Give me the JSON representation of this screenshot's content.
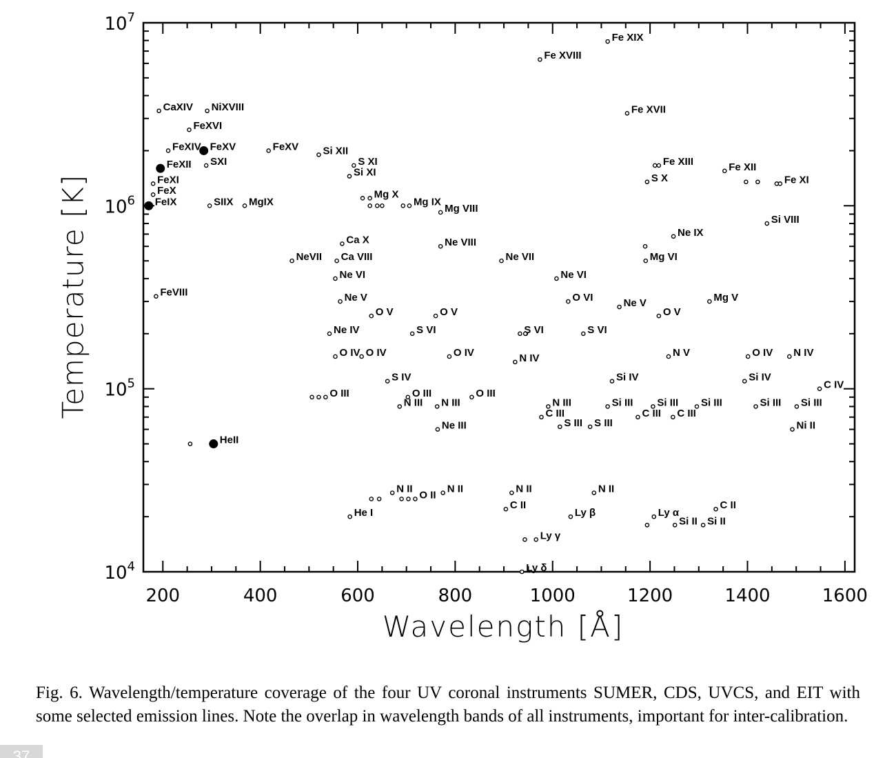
{
  "chart_data": {
    "type": "scatter",
    "xlabel": "Wavelength [Å]",
    "ylabel": "Temperature [K]",
    "xlim": [
      160,
      1620
    ],
    "ylim": [
      10000,
      10000000
    ],
    "yscale": "log",
    "x_ticks": [
      200,
      400,
      600,
      800,
      1000,
      1200,
      1400,
      1600
    ],
    "y_ticks": [
      {
        "value": 10000,
        "base": "10",
        "exp": "4"
      },
      {
        "value": 100000,
        "base": "10",
        "exp": "5"
      },
      {
        "value": 1000000,
        "base": "10",
        "exp": "6"
      },
      {
        "value": 10000000,
        "base": "10",
        "exp": "7"
      }
    ],
    "grid": false,
    "marker_colors": {
      "open": "#000000",
      "filled": "#000000"
    },
    "points": [
      {
        "x": 1113,
        "y": 7900000,
        "label": "Fe XIX"
      },
      {
        "x": 974,
        "y": 6300000,
        "label": "Fe XVIII"
      },
      {
        "x": 1153,
        "y": 3200000,
        "label": "Fe XVII"
      },
      {
        "x": 192,
        "y": 3300000,
        "label": "CaXIV"
      },
      {
        "x": 291,
        "y": 3300000,
        "label": "NiXVIII"
      },
      {
        "x": 254,
        "y": 2600000,
        "label": "FeXVI"
      },
      {
        "x": 211,
        "y": 2000000,
        "label": "FeXIV"
      },
      {
        "x": 284,
        "y": 2000000,
        "label": "FeXV",
        "filled": true
      },
      {
        "x": 417,
        "y": 2000000,
        "label": "FeXV"
      },
      {
        "x": 520,
        "y": 1900000,
        "label": "Si XII"
      },
      {
        "x": 195,
        "y": 1600000,
        "label": "FeXII",
        "filled": true
      },
      {
        "x": 289,
        "y": 1660000,
        "label": "SXI"
      },
      {
        "x": 592,
        "y": 1660000,
        "label": "S XI"
      },
      {
        "x": 583,
        "y": 1450000,
        "label": "Si XI"
      },
      {
        "x": 1210,
        "y": 1660000,
        "label": ""
      },
      {
        "x": 1218,
        "y": 1660000,
        "label": "Fe XIII"
      },
      {
        "x": 1353,
        "y": 1550000,
        "label": "Fe XII"
      },
      {
        "x": 180,
        "y": 1320000,
        "label": "FeXI"
      },
      {
        "x": 1194,
        "y": 1350000,
        "label": "S X"
      },
      {
        "x": 1397,
        "y": 1350000,
        "label": ""
      },
      {
        "x": 1421,
        "y": 1350000,
        "label": ""
      },
      {
        "x": 1460,
        "y": 1320000,
        "label": ""
      },
      {
        "x": 1467,
        "y": 1320000,
        "label": "Fe XI"
      },
      {
        "x": 180,
        "y": 1150000,
        "label": "FeX"
      },
      {
        "x": 171,
        "y": 1000000,
        "label": "FeIX",
        "filled": true
      },
      {
        "x": 296,
        "y": 1000000,
        "label": "SIIX"
      },
      {
        "x": 368,
        "y": 1000000,
        "label": "MgIX"
      },
      {
        "x": 610,
        "y": 1100000,
        "label": ""
      },
      {
        "x": 625,
        "y": 1100000,
        "label": "Mg X"
      },
      {
        "x": 625,
        "y": 1000000,
        "label": ""
      },
      {
        "x": 640,
        "y": 1000000,
        "label": ""
      },
      {
        "x": 650,
        "y": 1000000,
        "label": ""
      },
      {
        "x": 693,
        "y": 1000000,
        "label": ""
      },
      {
        "x": 706,
        "y": 1000000,
        "label": "Mg IX"
      },
      {
        "x": 770,
        "y": 920000,
        "label": "Mg VIII"
      },
      {
        "x": 1440,
        "y": 800000,
        "label": "Si VIII"
      },
      {
        "x": 1248,
        "y": 680000,
        "label": "Ne IX"
      },
      {
        "x": 568,
        "y": 620000,
        "label": "Ca X"
      },
      {
        "x": 770,
        "y": 600000,
        "label": "Ne VIII"
      },
      {
        "x": 1190,
        "y": 600000,
        "label": ""
      },
      {
        "x": 465,
        "y": 500000,
        "label": "NeVII"
      },
      {
        "x": 557,
        "y": 500000,
        "label": "Ca VIII"
      },
      {
        "x": 895,
        "y": 500000,
        "label": "Ne VII"
      },
      {
        "x": 1191,
        "y": 500000,
        "label": "Mg VI"
      },
      {
        "x": 554,
        "y": 400000,
        "label": "Ne VI"
      },
      {
        "x": 1008,
        "y": 400000,
        "label": "Ne VI"
      },
      {
        "x": 186,
        "y": 320000,
        "label": "FeVIII"
      },
      {
        "x": 564,
        "y": 300000,
        "label": "Ne V"
      },
      {
        "x": 1032,
        "y": 300000,
        "label": "O VI"
      },
      {
        "x": 1137,
        "y": 280000,
        "label": "Ne V"
      },
      {
        "x": 1322,
        "y": 300000,
        "label": "Mg V"
      },
      {
        "x": 628,
        "y": 250000,
        "label": "O V"
      },
      {
        "x": 760,
        "y": 250000,
        "label": "O V"
      },
      {
        "x": 1218,
        "y": 250000,
        "label": "O V"
      },
      {
        "x": 542,
        "y": 200000,
        "label": "Ne IV"
      },
      {
        "x": 712,
        "y": 200000,
        "label": "S VI"
      },
      {
        "x": 933,
        "y": 200000,
        "label": "S VI"
      },
      {
        "x": 945,
        "y": 200000,
        "label": ""
      },
      {
        "x": 944,
        "y": 200000,
        "label": ""
      },
      {
        "x": 1063,
        "y": 200000,
        "label": "S VI"
      },
      {
        "x": 554,
        "y": 150000,
        "label": "O IV"
      },
      {
        "x": 608,
        "y": 150000,
        "label": "O IV"
      },
      {
        "x": 788,
        "y": 150000,
        "label": "O IV"
      },
      {
        "x": 923,
        "y": 140000,
        "label": "N IV"
      },
      {
        "x": 1238,
        "y": 150000,
        "label": "N V"
      },
      {
        "x": 1401,
        "y": 150000,
        "label": "O IV"
      },
      {
        "x": 1486,
        "y": 150000,
        "label": "N IV"
      },
      {
        "x": 661,
        "y": 110000,
        "label": "S IV"
      },
      {
        "x": 1122,
        "y": 110000,
        "label": "Si IV"
      },
      {
        "x": 1394,
        "y": 110000,
        "label": "Si IV"
      },
      {
        "x": 1548,
        "y": 100000,
        "label": "C IV"
      },
      {
        "x": 506,
        "y": 90000,
        "label": ""
      },
      {
        "x": 520,
        "y": 90000,
        "label": ""
      },
      {
        "x": 534,
        "y": 90000,
        "label": "O III"
      },
      {
        "x": 686,
        "y": 80000,
        "label": "N III"
      },
      {
        "x": 703,
        "y": 90000,
        "label": "O III"
      },
      {
        "x": 763,
        "y": 80000,
        "label": "N III"
      },
      {
        "x": 834,
        "y": 90000,
        "label": "O III"
      },
      {
        "x": 991,
        "y": 80000,
        "label": "N III"
      },
      {
        "x": 1113,
        "y": 80000,
        "label": "Si III"
      },
      {
        "x": 1206,
        "y": 80000,
        "label": "Si III"
      },
      {
        "x": 1296,
        "y": 80000,
        "label": "Si III"
      },
      {
        "x": 1417,
        "y": 80000,
        "label": "Si III"
      },
      {
        "x": 1501,
        "y": 80000,
        "label": "Si III"
      },
      {
        "x": 977,
        "y": 70000,
        "label": "C III"
      },
      {
        "x": 1175,
        "y": 70000,
        "label": "C III"
      },
      {
        "x": 1247,
        "y": 70000,
        "label": "C III"
      },
      {
        "x": 1015,
        "y": 62000,
        "label": "S III"
      },
      {
        "x": 1077,
        "y": 62000,
        "label": "S III"
      },
      {
        "x": 764,
        "y": 60000,
        "label": "Ne III"
      },
      {
        "x": 1492,
        "y": 60000,
        "label": "Ni II"
      },
      {
        "x": 256,
        "y": 50000,
        "label": ""
      },
      {
        "x": 304,
        "y": 50000,
        "label": "HeII",
        "filled": true
      },
      {
        "x": 671,
        "y": 27000,
        "label": "N II"
      },
      {
        "x": 775,
        "y": 27000,
        "label": "N II"
      },
      {
        "x": 916,
        "y": 27000,
        "label": "N II"
      },
      {
        "x": 1085,
        "y": 27000,
        "label": "N II"
      },
      {
        "x": 628,
        "y": 25000,
        "label": ""
      },
      {
        "x": 644,
        "y": 25000,
        "label": ""
      },
      {
        "x": 690,
        "y": 25000,
        "label": ""
      },
      {
        "x": 704,
        "y": 25000,
        "label": ""
      },
      {
        "x": 718,
        "y": 25000,
        "label": "O II"
      },
      {
        "x": 904,
        "y": 22000,
        "label": "C II"
      },
      {
        "x": 1335,
        "y": 22000,
        "label": "C II"
      },
      {
        "x": 584,
        "y": 20000,
        "label": "He I"
      },
      {
        "x": 1037,
        "y": 20000,
        "label": "Ly β"
      },
      {
        "x": 1208,
        "y": 20000,
        "label": "Ly α"
      },
      {
        "x": 1194,
        "y": 18000,
        "label": ""
      },
      {
        "x": 1251,
        "y": 18000,
        "label": "Si II"
      },
      {
        "x": 1309,
        "y": 18000,
        "label": "Si II"
      },
      {
        "x": 943,
        "y": 15000,
        "label": ""
      },
      {
        "x": 966,
        "y": 15000,
        "label": "Ly γ"
      },
      {
        "x": 937,
        "y": 10000,
        "label": "Ly δ"
      }
    ]
  },
  "caption": {
    "text": "Fig. 6.   Wavelength/temperature coverage of the four UV coronal instruments SUMER, CDS, UVCS, and EIT with some selected emission lines. Note the overlap in wavelength bands of all instruments, important for inter-calibration."
  },
  "page_number": "37"
}
